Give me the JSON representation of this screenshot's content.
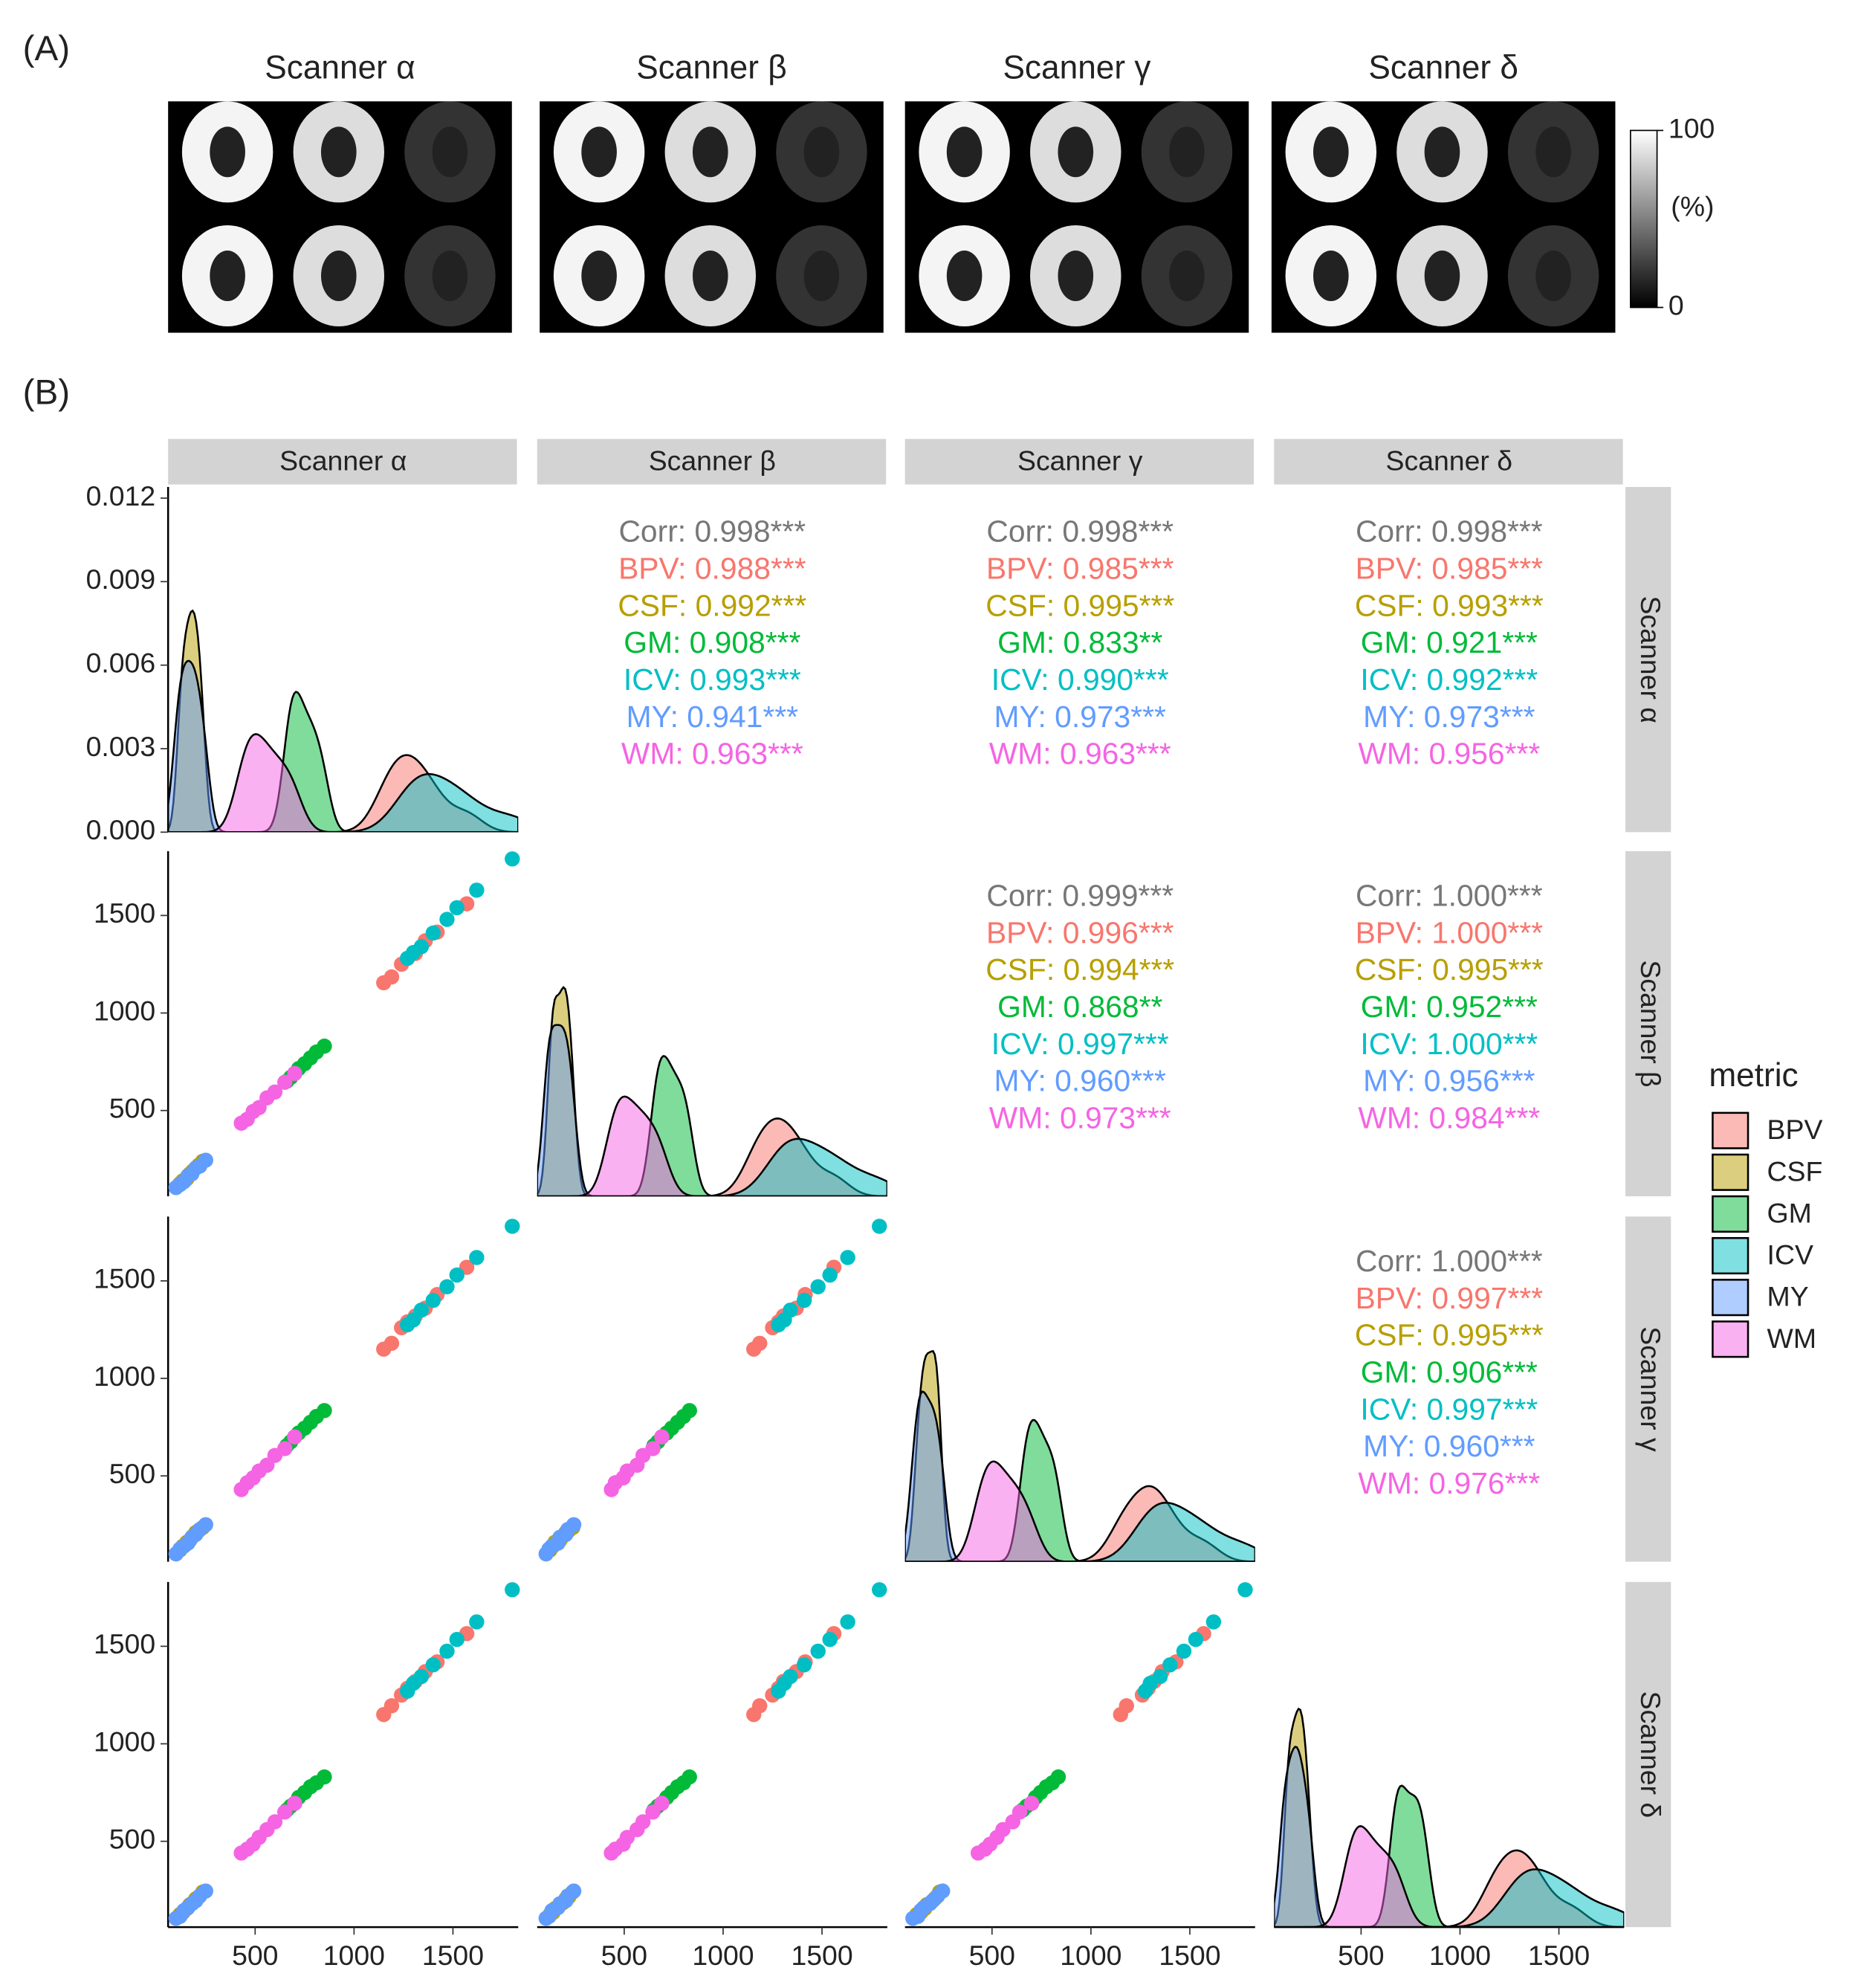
{
  "panel_a": {
    "label": "(A)",
    "titles": [
      "Scanner α",
      "Scanner β",
      "Scanner γ",
      "Scanner δ"
    ],
    "colorbar": {
      "lim": [
        0,
        100
      ],
      "ticks": [
        0,
        100
      ],
      "label": "(%)"
    }
  },
  "chart_data": {
    "type": "pairs",
    "label": "(B)",
    "scanners": [
      "Scanner α",
      "Scanner β",
      "Scanner γ",
      "Scanner δ"
    ],
    "legend_title": "metric",
    "legend": "right",
    "xlim": [
      60,
      1830
    ],
    "xticks": [
      500,
      1000,
      1500
    ],
    "ylim": [
      60,
      1830
    ],
    "yticks": [
      500,
      1000,
      1500
    ],
    "density_ylim": [
      0,
      0.0124
    ],
    "density_yticks": [
      {
        "value": 0,
        "label": "0.000"
      },
      {
        "value": 0.003,
        "label": "0.003"
      },
      {
        "value": 0.006,
        "label": "0.006"
      },
      {
        "value": 0.009,
        "label": "0.009"
      },
      {
        "value": 0.012,
        "label": "0.012"
      }
    ],
    "series": [
      {
        "name": "BPV",
        "color": "#F8766D",
        "values": [
          [
            1150,
            1190,
            1240,
            1270,
            1310,
            1360,
            1420,
            1570
          ],
          [
            1155,
            1185,
            1250,
            1280,
            1305,
            1370,
            1415,
            1560
          ],
          [
            1150,
            1180,
            1260,
            1290,
            1320,
            1360,
            1430,
            1570
          ],
          [
            1150,
            1195,
            1250,
            1285,
            1320,
            1370,
            1420,
            1565
          ]
        ]
      },
      {
        "name": "CSF",
        "color": "#B79F00",
        "values": [
          [
            120,
            135,
            155,
            170,
            185,
            200,
            215,
            235
          ],
          [
            125,
            140,
            150,
            175,
            190,
            205,
            220,
            240
          ],
          [
            120,
            140,
            160,
            170,
            190,
            210,
            220,
            235
          ],
          [
            125,
            135,
            155,
            175,
            185,
            205,
            215,
            240
          ]
        ]
      },
      {
        "name": "GM",
        "color": "#00BA38",
        "values": [
          [
            660,
            680,
            700,
            720,
            750,
            780,
            810,
            850
          ],
          [
            650,
            670,
            690,
            715,
            740,
            770,
            800,
            830
          ],
          [
            655,
            675,
            700,
            720,
            745,
            775,
            805,
            835
          ],
          [
            660,
            680,
            695,
            725,
            750,
            780,
            800,
            830
          ]
        ]
      },
      {
        "name": "ICV",
        "color": "#00BFC4",
        "values": [
          [
            1270,
            1300,
            1340,
            1400,
            1470,
            1520,
            1620,
            1800
          ],
          [
            1280,
            1310,
            1340,
            1410,
            1480,
            1540,
            1630,
            1790
          ],
          [
            1275,
            1300,
            1350,
            1400,
            1470,
            1530,
            1620,
            1780
          ],
          [
            1270,
            1310,
            1345,
            1405,
            1475,
            1535,
            1625,
            1790
          ]
        ]
      },
      {
        "name": "MY",
        "color": "#619CFF",
        "values": [
          [
            100,
            120,
            140,
            160,
            180,
            200,
            220,
            250
          ],
          [
            105,
            120,
            135,
            165,
            175,
            205,
            215,
            245
          ],
          [
            100,
            125,
            140,
            155,
            185,
            200,
            225,
            250
          ],
          [
            105,
            115,
            145,
            160,
            180,
            195,
            220,
            245
          ]
        ]
      },
      {
        "name": "WM",
        "color": "#F564E3",
        "values": [
          [
            430,
            460,
            490,
            520,
            560,
            600,
            650,
            700
          ],
          [
            435,
            455,
            495,
            515,
            565,
            595,
            645,
            690
          ],
          [
            430,
            465,
            490,
            525,
            555,
            605,
            640,
            700
          ],
          [
            440,
            460,
            485,
            520,
            560,
            600,
            650,
            695
          ]
        ]
      }
    ],
    "correlations": [
      [
        "Corr: 0.998***",
        "BPV: 0.988***",
        "CSF: 0.992***",
        "GM: 0.908***",
        "ICV: 0.993***",
        "MY: 0.941***",
        "WM: 0.963***"
      ],
      [
        "Corr: 0.998***",
        "BPV: 0.985***",
        "CSF: 0.995***",
        "GM: 0.833**",
        "ICV: 0.990***",
        "MY: 0.973***",
        "WM: 0.963***"
      ],
      [
        "Corr: 0.998***",
        "BPV: 0.985***",
        "CSF: 0.993***",
        "GM: 0.921***",
        "ICV: 0.992***",
        "MY: 0.973***",
        "WM: 0.956***"
      ],
      [
        "Corr: 0.999***",
        "BPV: 0.996***",
        "CSF: 0.994***",
        "GM: 0.868**",
        "ICV: 0.997***",
        "MY: 0.960***",
        "WM: 0.973***"
      ],
      [
        "Corr: 1.000***",
        "BPV: 1.000***",
        "CSF: 0.995***",
        "GM: 0.952***",
        "ICV: 1.000***",
        "MY: 0.956***",
        "WM: 0.984***"
      ],
      [
        "Corr: 1.000***",
        "BPV: 0.997***",
        "CSF: 0.995***",
        "GM: 0.906***",
        "ICV: 0.997***",
        "MY: 0.960***",
        "WM: 0.976***"
      ]
    ]
  }
}
